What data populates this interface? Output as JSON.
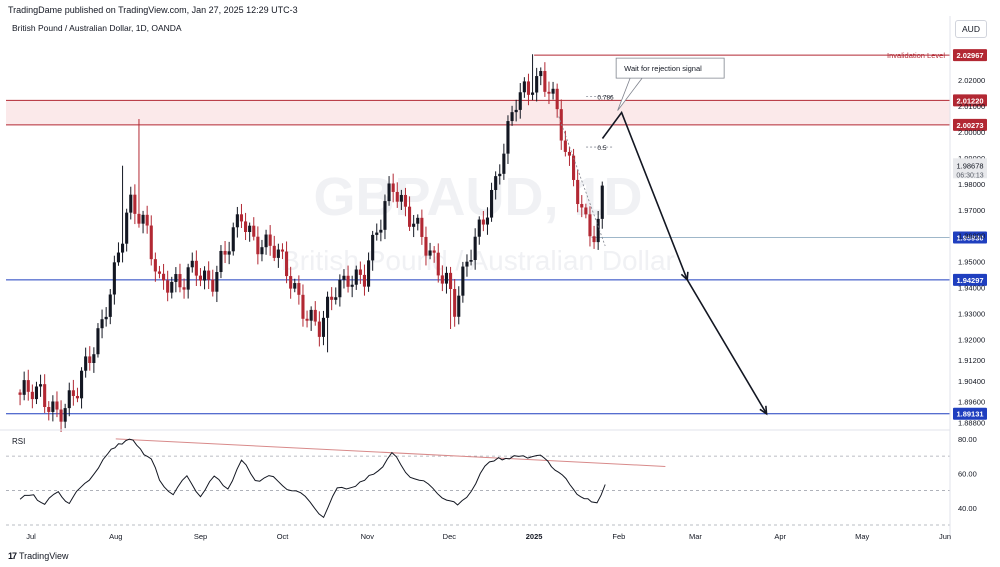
{
  "header": {
    "published": "TradingDame published on TradingView.com, Jan 27, 2025 12:29 UTC-3",
    "symbol_title": "British Pound / Australian Dollar, 1D, OANDA",
    "currency": "AUD"
  },
  "watermark": {
    "symbol": "GBPAUD, 1D",
    "name": "British Pound / Australian Dollar"
  },
  "footer": {
    "brand": "TradingView",
    "logo": "tv-logo-icon"
  },
  "colors": {
    "up": "#131722",
    "down": "#b22833",
    "resistance": "#b22833",
    "support": "#1f3fbf",
    "rsi_line": "#131722",
    "rsi_trend": "#d88a8a"
  },
  "chart_data": [
    {
      "type": "candlestick",
      "title": "British Pound / Australian Dollar, 1D, OANDA",
      "y_scale": "linear",
      "ylim": [
        1.8858,
        2.0355
      ],
      "y_ticks": [
        "2.02000",
        "2.01000",
        "2.00000",
        "1.99000",
        "1.98000",
        "1.97000",
        "1.96000",
        "1.95000",
        "1.94000",
        "1.93000",
        "1.92000",
        "1.91200",
        "1.90400",
        "1.89600",
        "1.88800"
      ],
      "x_ticks": [
        "Jul",
        "Aug",
        "Sep",
        "Oct",
        "Nov",
        "Dec",
        "2025",
        "Feb",
        "Mar",
        "Apr",
        "May",
        "Jun"
      ],
      "last_price": "1.98678",
      "countdown": "06:30:13",
      "levels": [
        {
          "name": "invalidation",
          "value": "2.02967",
          "label": "Invalidation Level",
          "color": "#b22833"
        },
        {
          "name": "zone-top",
          "value": "2.01220",
          "color": "#b22833"
        },
        {
          "name": "zone-bottom",
          "value": "2.00273",
          "color": "#b22833"
        },
        {
          "name": "recent-low",
          "value": "1.95930",
          "color": "#1f3fbf"
        },
        {
          "name": "support-1",
          "value": "1.94297",
          "color": "#1f3fbf"
        },
        {
          "name": "support-2",
          "value": "1.89131",
          "color": "#1f3fbf"
        }
      ],
      "fib_levels": [
        {
          "label": "0.786",
          "value": 2.0137
        },
        {
          "label": "0.5",
          "value": 1.9942
        }
      ],
      "annotation": "Wait for rejection signal",
      "projection_path": [
        {
          "date": "2025-01-26",
          "price": 1.9975
        },
        {
          "date": "2025-02-02",
          "price": 2.0075
        },
        {
          "date": "2025-02-26",
          "price": 1.943
        },
        {
          "date": "2025-03-27",
          "price": 1.8913
        }
      ],
      "close_path": [
        [
          "2024-06-27",
          1.8995
        ],
        [
          "2024-07-06",
          1.8968
        ],
        [
          "2024-07-11",
          1.8935
        ],
        [
          "2024-07-17",
          1.8975
        ],
        [
          "2024-07-22",
          1.9105
        ],
        [
          "2024-07-27",
          1.928
        ],
        [
          "2024-08-02",
          1.953
        ],
        [
          "2024-08-06",
          1.97
        ],
        [
          "2024-08-12",
          1.965
        ],
        [
          "2024-08-17",
          1.944
        ],
        [
          "2024-08-24",
          1.938
        ],
        [
          "2024-08-30",
          1.95
        ],
        [
          "2024-09-05",
          1.942
        ],
        [
          "2024-09-10",
          1.951
        ],
        [
          "2024-09-16",
          1.969
        ],
        [
          "2024-09-21",
          1.959
        ],
        [
          "2024-09-29",
          1.952
        ],
        [
          "2024-10-05",
          1.942
        ],
        [
          "2024-10-10",
          1.93
        ],
        [
          "2024-10-15",
          1.922
        ],
        [
          "2024-10-20",
          1.939
        ],
        [
          "2024-10-25",
          1.946
        ],
        [
          "2024-10-31",
          1.943
        ],
        [
          "2024-11-06",
          1.965
        ],
        [
          "2024-11-10",
          1.983
        ],
        [
          "2024-11-16",
          1.968
        ],
        [
          "2024-11-23",
          1.953
        ],
        [
          "2024-11-30",
          1.945
        ],
        [
          "2024-12-03",
          1.933
        ],
        [
          "2024-12-07",
          1.946
        ],
        [
          "2024-12-13",
          1.965
        ],
        [
          "2024-12-18",
          1.983
        ],
        [
          "2024-12-23",
          2.002
        ],
        [
          "2024-12-26",
          2.012
        ],
        [
          "2024-12-30",
          2.015
        ],
        [
          "2025-01-03",
          2.0235
        ],
        [
          "2025-01-07",
          2.018
        ],
        [
          "2025-01-10",
          2.004
        ],
        [
          "2025-01-13",
          1.987
        ],
        [
          "2025-01-16",
          1.979
        ],
        [
          "2025-01-19",
          1.968
        ],
        [
          "2025-01-22",
          1.964
        ],
        [
          "2025-01-24",
          1.961
        ],
        [
          "2025-01-25",
          1.97
        ],
        [
          "2025-01-27",
          1.9868
        ]
      ],
      "high_wicks": [
        [
          "2024-08-10",
          2.005
        ],
        [
          "2024-08-03",
          1.987
        ],
        [
          "2024-11-09",
          1.983
        ],
        [
          "2025-01-01",
          2.03
        ]
      ],
      "low_wicks": [
        [
          "2024-07-10",
          1.89
        ],
        [
          "2024-10-17",
          1.915
        ],
        [
          "2024-12-02",
          1.924
        ],
        [
          "2025-01-25",
          1.956
        ]
      ],
      "current_date": "2025-01-27"
    },
    {
      "type": "line",
      "label": "RSI",
      "ylim": [
        30,
        84
      ],
      "y_ticks": [
        "80.00",
        "60.00",
        "40.00"
      ],
      "bands": [
        70,
        50,
        30
      ],
      "trendline": [
        [
          "2024-08-01",
          80
        ],
        [
          "2025-02-18",
          64
        ]
      ],
      "series": [
        [
          "2024-06-27",
          45
        ],
        [
          "2024-07-02",
          47
        ],
        [
          "2024-07-06",
          43
        ],
        [
          "2024-07-11",
          48
        ],
        [
          "2024-07-15",
          44
        ],
        [
          "2024-07-19",
          50
        ],
        [
          "2024-07-24",
          61
        ],
        [
          "2024-07-29",
          70
        ],
        [
          "2024-08-02",
          78
        ],
        [
          "2024-08-06",
          79.5
        ],
        [
          "2024-08-10",
          74
        ],
        [
          "2024-08-14",
          69
        ],
        [
          "2024-08-17",
          55
        ],
        [
          "2024-08-22",
          49
        ],
        [
          "2024-08-27",
          57
        ],
        [
          "2024-09-01",
          48
        ],
        [
          "2024-09-06",
          57
        ],
        [
          "2024-09-11",
          52
        ],
        [
          "2024-09-16",
          67
        ],
        [
          "2024-09-21",
          56
        ],
        [
          "2024-09-26",
          59
        ],
        [
          "2024-10-01",
          52
        ],
        [
          "2024-10-06",
          51
        ],
        [
          "2024-10-11",
          42
        ],
        [
          "2024-10-16",
          36
        ],
        [
          "2024-10-21",
          50
        ],
        [
          "2024-10-26",
          53
        ],
        [
          "2024-10-31",
          55
        ],
        [
          "2024-11-05",
          62
        ],
        [
          "2024-11-10",
          72
        ],
        [
          "2024-11-15",
          60
        ],
        [
          "2024-11-20",
          57
        ],
        [
          "2024-11-25",
          50
        ],
        [
          "2024-11-30",
          46
        ],
        [
          "2024-12-04",
          40
        ],
        [
          "2024-12-09",
          51
        ],
        [
          "2024-12-14",
          63
        ],
        [
          "2024-12-19",
          70
        ],
        [
          "2024-12-23",
          68
        ],
        [
          "2024-12-28",
          70
        ],
        [
          "2025-01-02",
          71
        ],
        [
          "2025-01-06",
          66
        ],
        [
          "2025-01-10",
          62
        ],
        [
          "2025-01-14",
          52
        ],
        [
          "2025-01-18",
          48
        ],
        [
          "2025-01-22",
          42
        ],
        [
          "2025-01-24",
          44
        ],
        [
          "2025-01-27",
          53.5
        ]
      ]
    }
  ]
}
